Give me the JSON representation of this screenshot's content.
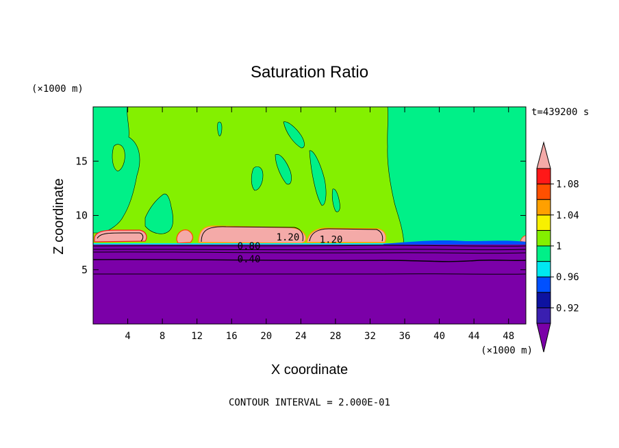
{
  "chart_data": {
    "type": "heatmap",
    "title": "Saturation Ratio",
    "xlabel": "X coordinate",
    "ylabel": "Z coordinate",
    "x_unit": "(×1000 m)",
    "y_unit": "(×1000 m)",
    "time_label": "t=439200 s",
    "footer": "CONTOUR INTERVAL = 2.000E-01",
    "xlim": [
      0,
      50
    ],
    "ylim": [
      0,
      20
    ],
    "x_ticks": [
      4,
      8,
      12,
      16,
      20,
      24,
      28,
      32,
      36,
      40,
      44,
      48
    ],
    "x_tick_labels": [
      "4",
      "8",
      "12",
      "16",
      "20",
      "24",
      "28",
      "32",
      "36",
      "40",
      "44",
      "48"
    ],
    "y_ticks": [
      5,
      10,
      15
    ],
    "y_tick_labels": [
      "5",
      "10",
      "15"
    ],
    "colorbar": {
      "levels": [
        0.92,
        0.94,
        0.96,
        0.98,
        1.0,
        1.02,
        1.04,
        1.06,
        1.08,
        1.1
      ],
      "level_labels": [
        "0.92",
        "0.96",
        "1",
        "1.04",
        "1.08"
      ],
      "label_levels": [
        0.92,
        0.96,
        1.0,
        1.04,
        1.08
      ],
      "colors": [
        "#7b00a8",
        "#3a1fb0",
        "#0d12a0",
        "#0050ff",
        "#00e8f0",
        "#00f088",
        "#84f000",
        "#f8f000",
        "#ffa000",
        "#ff5000",
        "#ff1818",
        "#f4aaa8"
      ]
    },
    "contour_labels": [
      {
        "text": "0.80",
        "x": 18,
        "y": 7.2
      },
      {
        "text": "0.40",
        "x": 18,
        "y": 6.0
      },
      {
        "text": "1.20",
        "x": 22.5,
        "y": 8.0
      },
      {
        "text": "1.20",
        "x": 27.5,
        "y": 7.8
      }
    ]
  }
}
